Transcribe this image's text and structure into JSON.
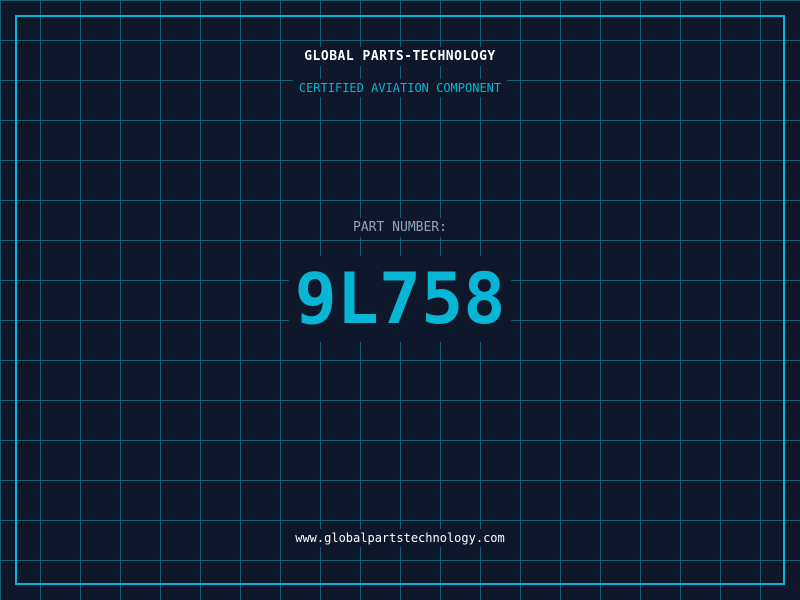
{
  "header": {
    "brand": "GLOBAL PARTS-TECHNOLOGY",
    "subtitle": "CERTIFIED AVIATION COMPONENT"
  },
  "part": {
    "label": "PART NUMBER:",
    "number": "9L758"
  },
  "footer": {
    "url": "www.globalpartstechnology.com"
  },
  "colors": {
    "background": "#0f172a",
    "accent": "#06b6d4",
    "grid": "#155e75"
  }
}
